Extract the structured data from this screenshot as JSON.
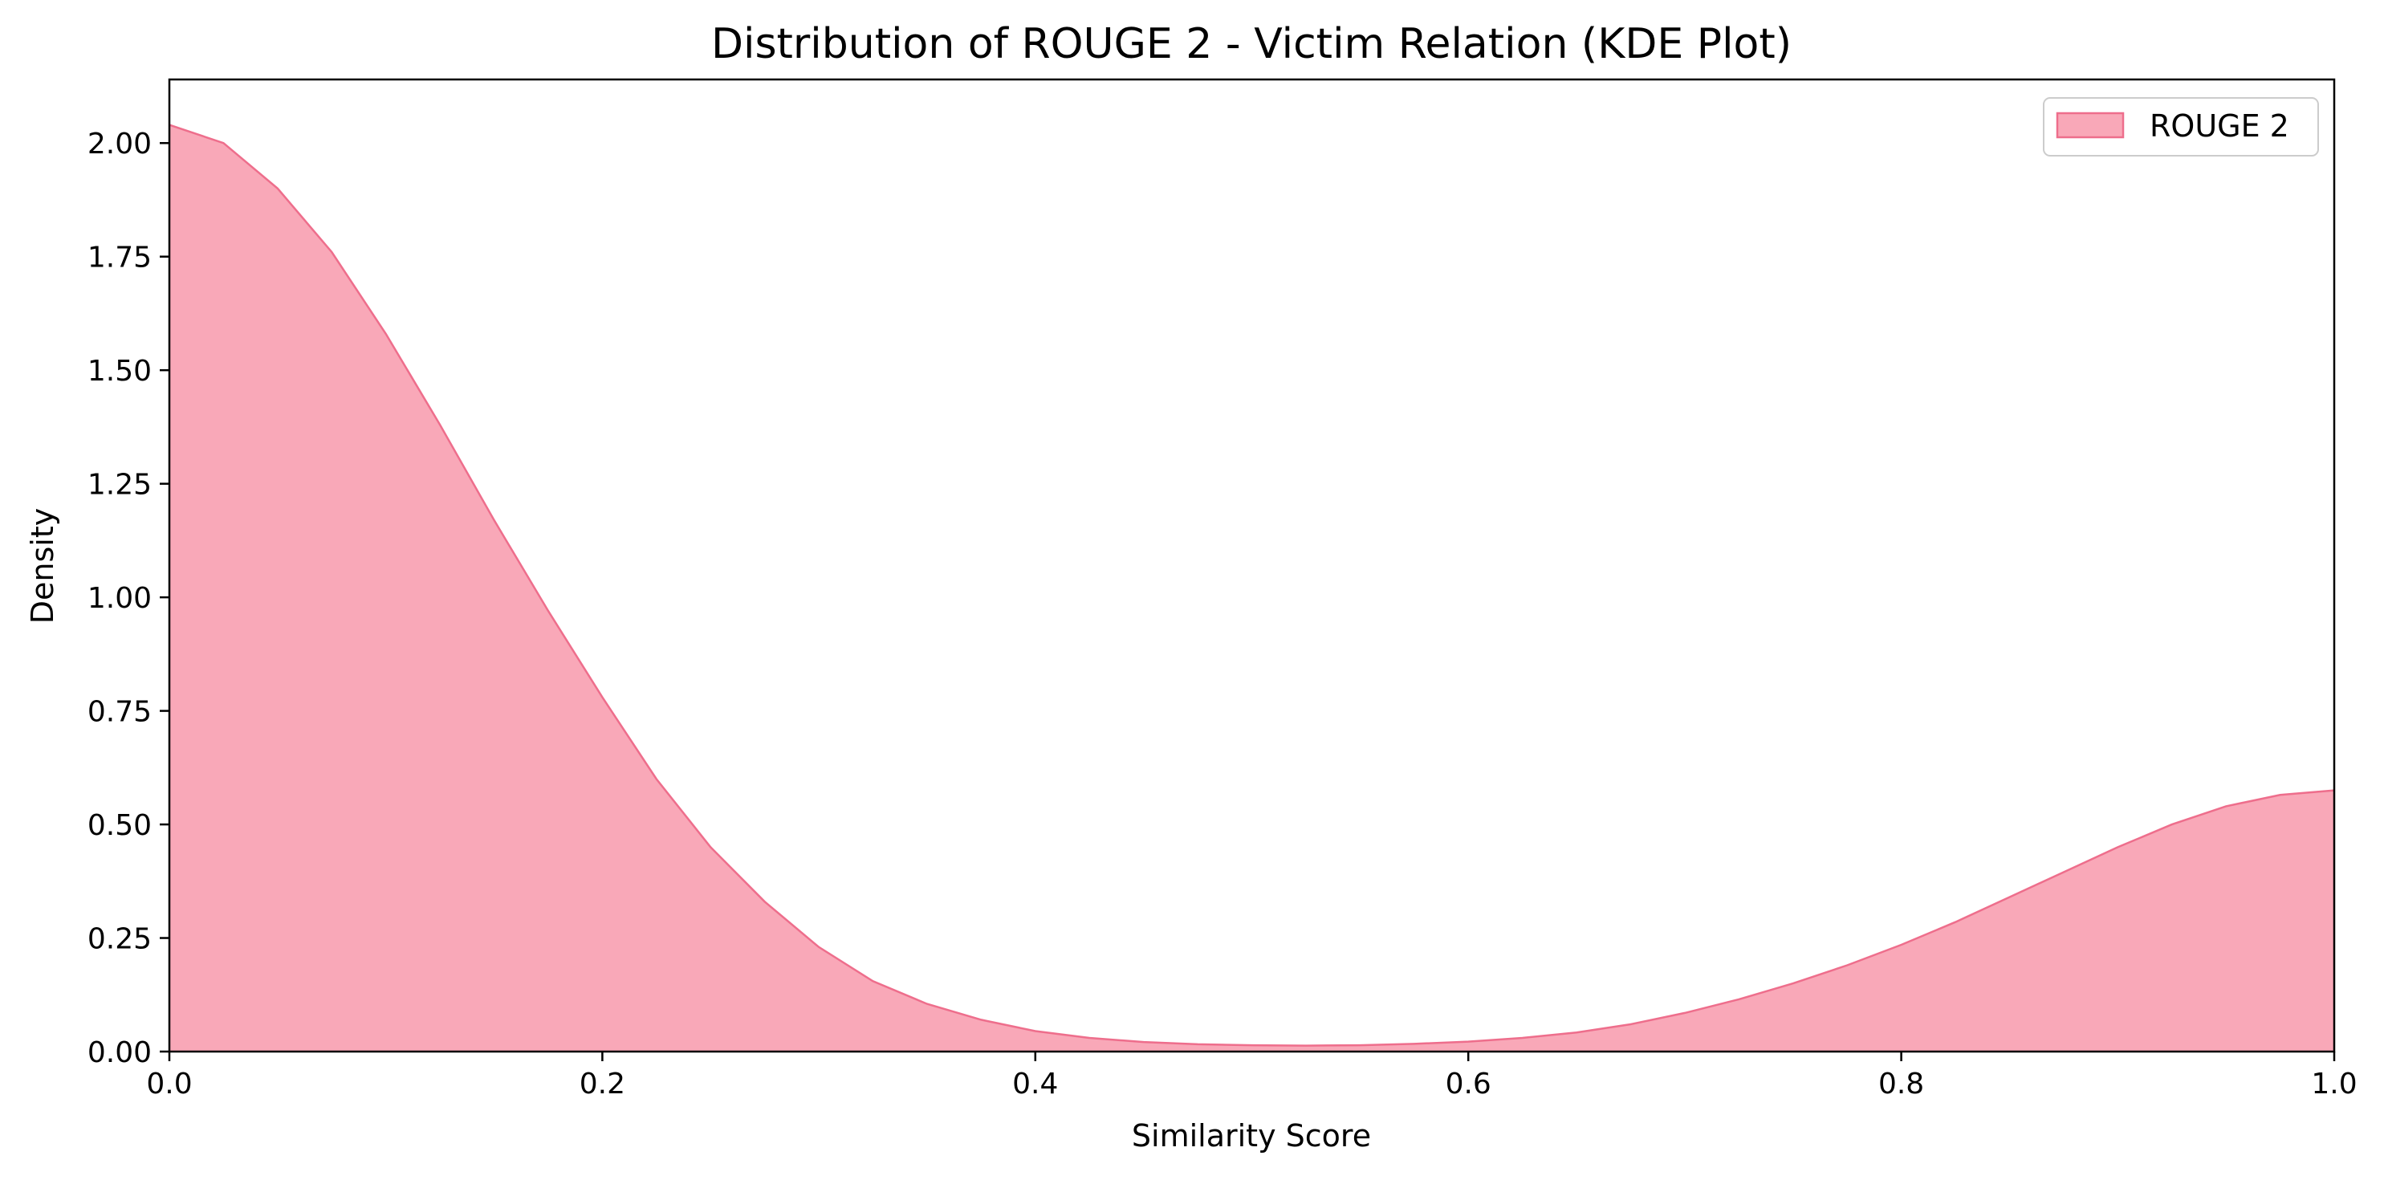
{
  "chart_data": {
    "type": "area",
    "title": "Distribution of ROUGE 2 - Victim Relation (KDE Plot)",
    "xlabel": "Similarity Score",
    "ylabel": "Density",
    "xlim": [
      0.0,
      1.0
    ],
    "ylim": [
      0.0,
      2.14
    ],
    "grid": false,
    "legend_position": "top-right",
    "xticks": [
      0.0,
      0.2,
      0.4,
      0.6,
      0.8,
      1.0
    ],
    "xtick_labels": [
      "0.0",
      "0.2",
      "0.4",
      "0.6",
      "0.8",
      "1.0"
    ],
    "yticks": [
      0.0,
      0.25,
      0.5,
      0.75,
      1.0,
      1.25,
      1.5,
      1.75,
      2.0
    ],
    "ytick_labels": [
      "0.00",
      "0.25",
      "0.50",
      "0.75",
      "1.00",
      "1.25",
      "1.50",
      "1.75",
      "2.00"
    ],
    "series": [
      {
        "name": "ROUGE 2",
        "fill_color": "#f9a8b8",
        "line_color": "#ee6e8c",
        "x": [
          0.0,
          0.025,
          0.05,
          0.075,
          0.1,
          0.125,
          0.15,
          0.175,
          0.2,
          0.225,
          0.25,
          0.275,
          0.3,
          0.325,
          0.35,
          0.375,
          0.4,
          0.425,
          0.45,
          0.475,
          0.5,
          0.525,
          0.55,
          0.575,
          0.6,
          0.625,
          0.65,
          0.675,
          0.7,
          0.725,
          0.75,
          0.775,
          0.8,
          0.825,
          0.85,
          0.875,
          0.9,
          0.925,
          0.95,
          0.975,
          1.0
        ],
        "y": [
          2.04,
          2.0,
          1.9,
          1.76,
          1.58,
          1.38,
          1.17,
          0.97,
          0.78,
          0.6,
          0.45,
          0.33,
          0.23,
          0.155,
          0.105,
          0.07,
          0.045,
          0.03,
          0.021,
          0.016,
          0.014,
          0.013,
          0.014,
          0.017,
          0.022,
          0.03,
          0.042,
          0.06,
          0.085,
          0.115,
          0.15,
          0.19,
          0.235,
          0.285,
          0.34,
          0.395,
          0.45,
          0.5,
          0.54,
          0.565,
          0.575
        ]
      }
    ]
  }
}
